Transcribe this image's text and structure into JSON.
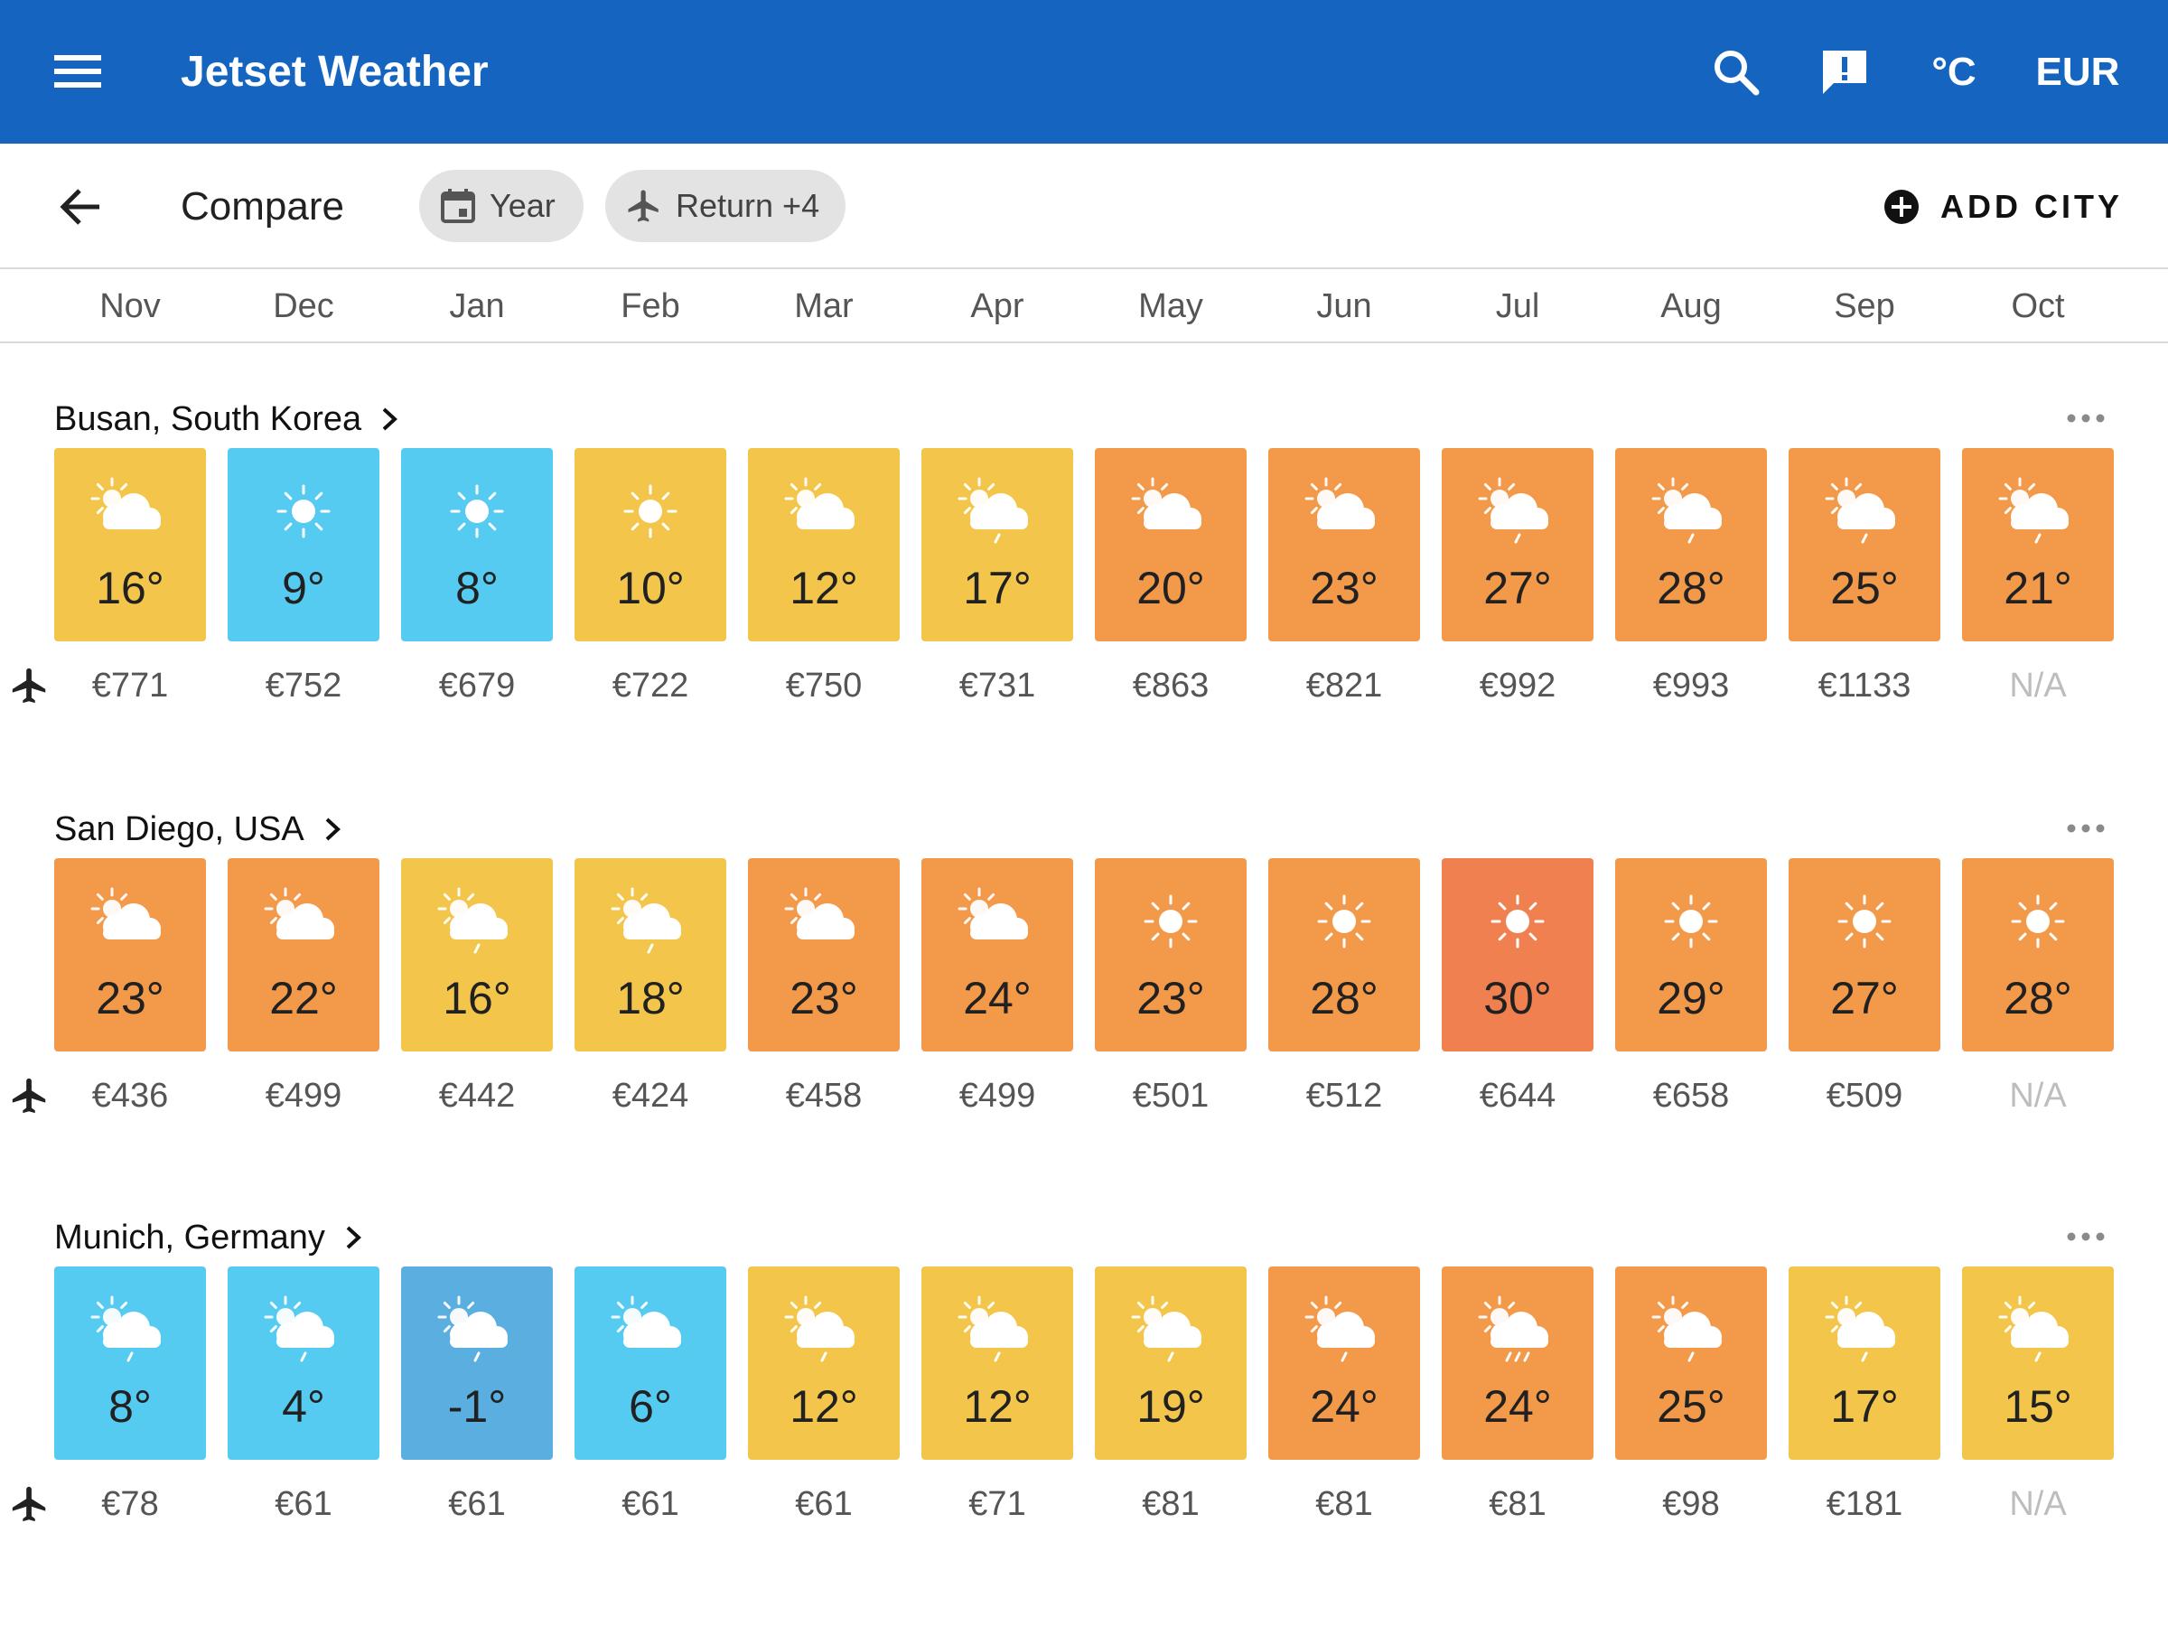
{
  "appbar": {
    "title": "Jetset Weather",
    "unit": "°C",
    "currency": "EUR",
    "color": "#1565c0"
  },
  "toolbar": {
    "title": "Compare",
    "chip_year": "Year",
    "chip_return": "Return +4",
    "add_city": "ADD CITY"
  },
  "months": [
    "Nov",
    "Dec",
    "Jan",
    "Feb",
    "Mar",
    "Apr",
    "May",
    "Jun",
    "Jul",
    "Aug",
    "Sep",
    "Oct"
  ],
  "palette": {
    "cold": "#5aafe0",
    "cool": "#56cbf2",
    "mild": "#f3c64b",
    "warm": "#f2994a",
    "hot": "#f0804f"
  },
  "cities": [
    {
      "name": "Busan, South Korea",
      "months": [
        {
          "temp": "16°",
          "price": "€771",
          "icon": "partly-cloudy-icon",
          "tone": "mild"
        },
        {
          "temp": "9°",
          "price": "€752",
          "icon": "sun-icon",
          "tone": "cool"
        },
        {
          "temp": "8°",
          "price": "€679",
          "icon": "sun-icon",
          "tone": "cool"
        },
        {
          "temp": "10°",
          "price": "€722",
          "icon": "sun-icon",
          "tone": "mild"
        },
        {
          "temp": "12°",
          "price": "€750",
          "icon": "partly-cloudy-icon",
          "tone": "mild"
        },
        {
          "temp": "17°",
          "price": "€731",
          "icon": "partly-cloudy-drizzle-icon",
          "tone": "mild"
        },
        {
          "temp": "20°",
          "price": "€863",
          "icon": "partly-cloudy-icon",
          "tone": "warm"
        },
        {
          "temp": "23°",
          "price": "€821",
          "icon": "partly-cloudy-icon",
          "tone": "warm"
        },
        {
          "temp": "27°",
          "price": "€992",
          "icon": "partly-cloudy-drizzle-icon",
          "tone": "warm"
        },
        {
          "temp": "28°",
          "price": "€993",
          "icon": "partly-cloudy-drizzle-icon",
          "tone": "warm"
        },
        {
          "temp": "25°",
          "price": "€1133",
          "icon": "partly-cloudy-drizzle-icon",
          "tone": "warm"
        },
        {
          "temp": "21°",
          "price": "N/A",
          "icon": "partly-cloudy-drizzle-icon",
          "tone": "warm"
        }
      ]
    },
    {
      "name": "San Diego, USA",
      "months": [
        {
          "temp": "23°",
          "price": "€436",
          "icon": "partly-cloudy-icon",
          "tone": "warm"
        },
        {
          "temp": "22°",
          "price": "€499",
          "icon": "partly-cloudy-icon",
          "tone": "warm"
        },
        {
          "temp": "16°",
          "price": "€442",
          "icon": "partly-cloudy-drizzle-icon",
          "tone": "mild"
        },
        {
          "temp": "18°",
          "price": "€424",
          "icon": "partly-cloudy-drizzle-icon",
          "tone": "mild"
        },
        {
          "temp": "23°",
          "price": "€458",
          "icon": "partly-cloudy-icon",
          "tone": "warm"
        },
        {
          "temp": "24°",
          "price": "€499",
          "icon": "partly-cloudy-icon",
          "tone": "warm"
        },
        {
          "temp": "23°",
          "price": "€501",
          "icon": "sun-icon",
          "tone": "warm"
        },
        {
          "temp": "28°",
          "price": "€512",
          "icon": "sun-icon",
          "tone": "warm"
        },
        {
          "temp": "30°",
          "price": "€644",
          "icon": "sun-icon",
          "tone": "hot"
        },
        {
          "temp": "29°",
          "price": "€658",
          "icon": "sun-icon",
          "tone": "warm"
        },
        {
          "temp": "27°",
          "price": "€509",
          "icon": "sun-icon",
          "tone": "warm"
        },
        {
          "temp": "28°",
          "price": "N/A",
          "icon": "sun-icon",
          "tone": "warm"
        }
      ]
    },
    {
      "name": "Munich, Germany",
      "months": [
        {
          "temp": "8°",
          "price": "€78",
          "icon": "partly-cloudy-drizzle-icon",
          "tone": "cool"
        },
        {
          "temp": "4°",
          "price": "€61",
          "icon": "partly-cloudy-drizzle-icon",
          "tone": "cool"
        },
        {
          "temp": "-1°",
          "price": "€61",
          "icon": "partly-cloudy-drizzle-icon",
          "tone": "cold"
        },
        {
          "temp": "6°",
          "price": "€61",
          "icon": "partly-cloudy-icon",
          "tone": "cool"
        },
        {
          "temp": "12°",
          "price": "€61",
          "icon": "partly-cloudy-drizzle-icon",
          "tone": "mild"
        },
        {
          "temp": "12°",
          "price": "€71",
          "icon": "partly-cloudy-drizzle-icon",
          "tone": "mild"
        },
        {
          "temp": "19°",
          "price": "€81",
          "icon": "partly-cloudy-drizzle-icon",
          "tone": "mild"
        },
        {
          "temp": "24°",
          "price": "€81",
          "icon": "partly-cloudy-drizzle-icon",
          "tone": "warm"
        },
        {
          "temp": "24°",
          "price": "€81",
          "icon": "partly-cloudy-rain-icon",
          "tone": "warm"
        },
        {
          "temp": "25°",
          "price": "€98",
          "icon": "partly-cloudy-drizzle-icon",
          "tone": "warm"
        },
        {
          "temp": "17°",
          "price": "€181",
          "icon": "partly-cloudy-drizzle-icon",
          "tone": "mild"
        },
        {
          "temp": "15°",
          "price": "N/A",
          "icon": "partly-cloudy-drizzle-icon",
          "tone": "mild"
        }
      ]
    }
  ]
}
